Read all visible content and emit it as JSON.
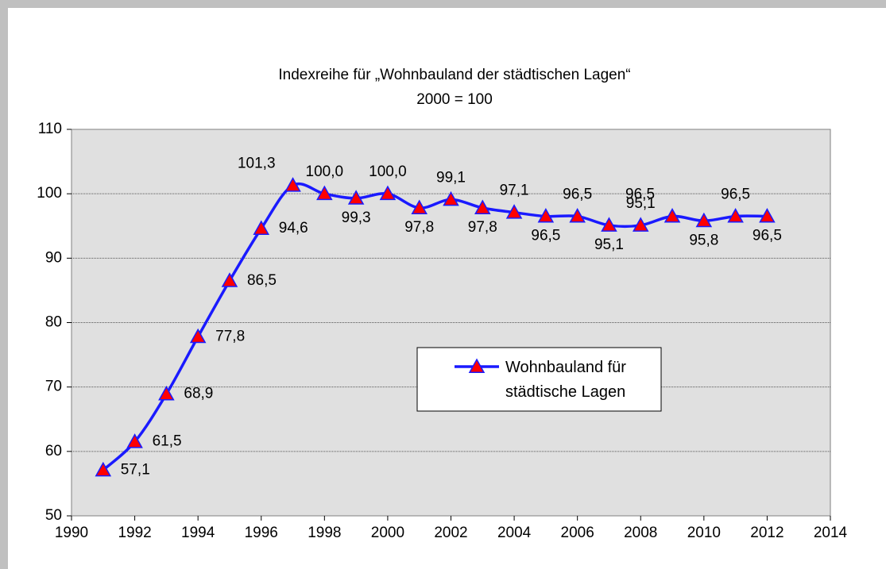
{
  "chart_data": {
    "type": "line",
    "title": "Indexreihe für „Wohnbauland der städtischen Lagen“",
    "subtitle": "2000 = 100",
    "x": [
      1991,
      1992,
      1993,
      1994,
      1995,
      1996,
      1997,
      1998,
      1999,
      2000,
      2001,
      2002,
      2003,
      2004,
      2005,
      2006,
      2007,
      2008,
      2009,
      2010,
      2011,
      2012
    ],
    "series": [
      {
        "name": "Wohnbauland für städtische Lagen",
        "color": "#1a1aff",
        "marker_color": "#ff0000",
        "values": [
          57.1,
          61.5,
          68.9,
          77.8,
          86.5,
          94.6,
          101.3,
          100.0,
          99.3,
          100.0,
          97.8,
          99.1,
          97.8,
          97.1,
          96.5,
          96.5,
          95.1,
          95.1,
          96.5,
          95.8,
          96.5,
          96.5
        ],
        "value_labels": [
          "57,1",
          "61,5",
          "68,9",
          "77,8",
          "86,5",
          "94,6",
          "101,3",
          "100,0",
          "99,3",
          "100,0",
          "97,8",
          "99,1",
          "97,8",
          "97,1",
          "96,5",
          "96,5",
          "95,1",
          "95,1",
          "96,5",
          "95,8",
          "96,5",
          "96,5"
        ]
      }
    ],
    "xlim": [
      1990,
      2014
    ],
    "xticks": [
      1990,
      1992,
      1994,
      1996,
      1998,
      2000,
      2002,
      2004,
      2006,
      2008,
      2010,
      2012,
      2014
    ],
    "ylim": [
      50,
      110
    ],
    "yticks": [
      50,
      60,
      70,
      80,
      90,
      100,
      110
    ],
    "grid": true,
    "legend": "center"
  }
}
